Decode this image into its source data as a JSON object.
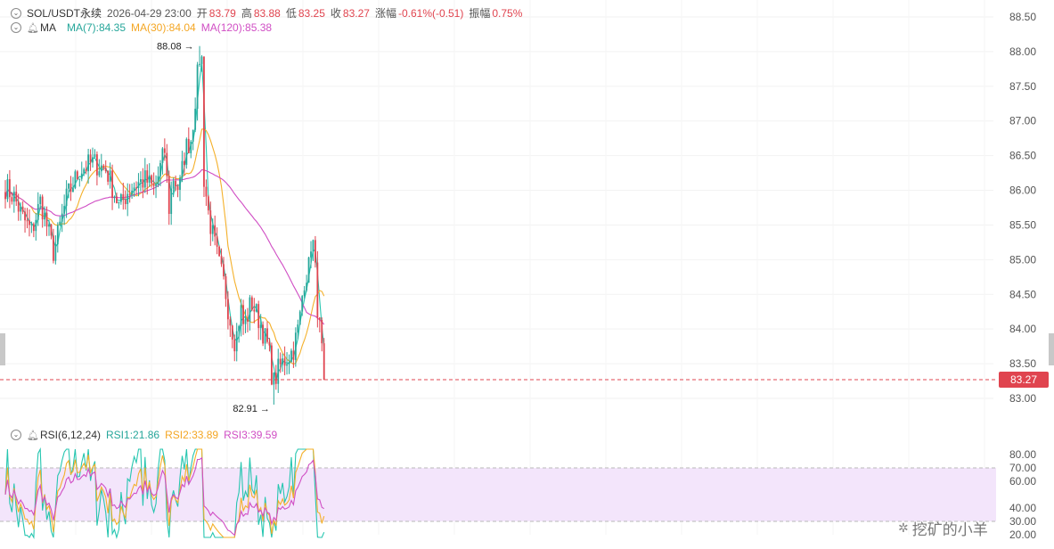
{
  "header": {
    "symbol": "SOL/USDT永续",
    "datetime": "2026-04-29 23:00",
    "open_label": "开",
    "open_value": "83.79",
    "high_label": "高",
    "high_value": "83.88",
    "low_label": "低",
    "low_value": "83.25",
    "close_label": "收",
    "close_value": "83.27",
    "change_label": "涨幅",
    "change_value": "-0.61%(-0.51)",
    "amplitude_label": "振幅",
    "amplitude_value": "0.75%"
  },
  "ma_legend": {
    "label": "MA",
    "ma7": "MA(7):84.35",
    "ma30": "MA(30):84.04",
    "ma120": "MA(120):85.38"
  },
  "rsi_legend": {
    "label": "RSI(6,12,24)",
    "rsi1": "RSI1:21.86",
    "rsi2": "RSI2:33.89",
    "rsi3": "RSI3:39.59"
  },
  "colors": {
    "up": "#26a69a",
    "down": "#e0444f",
    "ma7": "#26c6b0",
    "ma30": "#f4b02a",
    "ma120": "#d04ec4",
    "rsi_band": "#f3e5fb"
  },
  "annotations": {
    "high_marker": "88.08",
    "low_marker": "82.91"
  },
  "current_price": "83.27",
  "watermark": "挖矿的小羊",
  "chart_data": [
    {
      "type": "candlestick",
      "y_axis_ticks": [
        "88.50",
        "88.00",
        "87.50",
        "87.00",
        "86.50",
        "86.00",
        "85.50",
        "85.00",
        "84.50",
        "84.00",
        "83.50",
        "83.00"
      ],
      "ylim": [
        82.75,
        88.62
      ],
      "last_price_line": 83.27,
      "high": 88.08,
      "low": 82.91,
      "candle_count": 147,
      "close_path": [
        [
          0,
          86.05
        ],
        [
          10,
          85.9
        ],
        [
          20,
          85.6
        ],
        [
          30,
          85.4
        ],
        [
          40,
          85.85
        ],
        [
          55,
          85.1
        ],
        [
          70,
          85.9
        ],
        [
          85,
          86.3
        ],
        [
          100,
          86.4
        ],
        [
          115,
          86.3
        ],
        [
          130,
          85.75
        ],
        [
          140,
          86.0
        ],
        [
          150,
          86.1
        ],
        [
          160,
          86.15
        ],
        [
          170,
          86.0
        ],
        [
          183,
          86.65
        ],
        [
          185,
          85.6
        ],
        [
          191,
          86.2
        ],
        [
          198,
          86.0
        ],
        [
          205,
          86.6
        ],
        [
          212,
          86.75
        ],
        [
          218,
          87.55
        ],
        [
          222,
          88.0
        ],
        [
          225,
          87.8
        ],
        [
          226,
          86.2
        ],
        [
          232,
          85.6
        ],
        [
          237,
          85.3
        ],
        [
          242,
          85.0
        ],
        [
          250,
          84.6
        ],
        [
          255,
          84.2
        ],
        [
          262,
          83.8
        ],
        [
          268,
          84.3
        ],
        [
          272,
          84.0
        ],
        [
          280,
          84.4
        ],
        [
          290,
          84.1
        ],
        [
          300,
          83.7
        ],
        [
          305,
          83.2
        ],
        [
          312,
          83.45
        ],
        [
          318,
          83.55
        ],
        [
          328,
          83.7
        ],
        [
          335,
          84.1
        ],
        [
          340,
          84.7
        ],
        [
          346,
          84.9
        ],
        [
          349,
          85.4
        ],
        [
          352,
          85.05
        ],
        [
          355,
          84.4
        ],
        [
          358,
          84.0
        ],
        [
          360,
          83.75
        ],
        [
          363,
          83.27
        ]
      ],
      "ma7_last": 84.35,
      "ma30_last": 84.04,
      "ma120_last": 85.38
    },
    {
      "type": "line",
      "title": "RSI(6,12,24)",
      "y_axis_ticks": [
        "80.00",
        "70.00",
        "60.00",
        "40.00",
        "30.00",
        "20.00"
      ],
      "band": [
        30,
        70
      ],
      "series": [
        {
          "name": "RSI1",
          "last": 21.86
        },
        {
          "name": "RSI2",
          "last": 33.89
        },
        {
          "name": "RSI3",
          "last": 39.59
        }
      ]
    }
  ]
}
